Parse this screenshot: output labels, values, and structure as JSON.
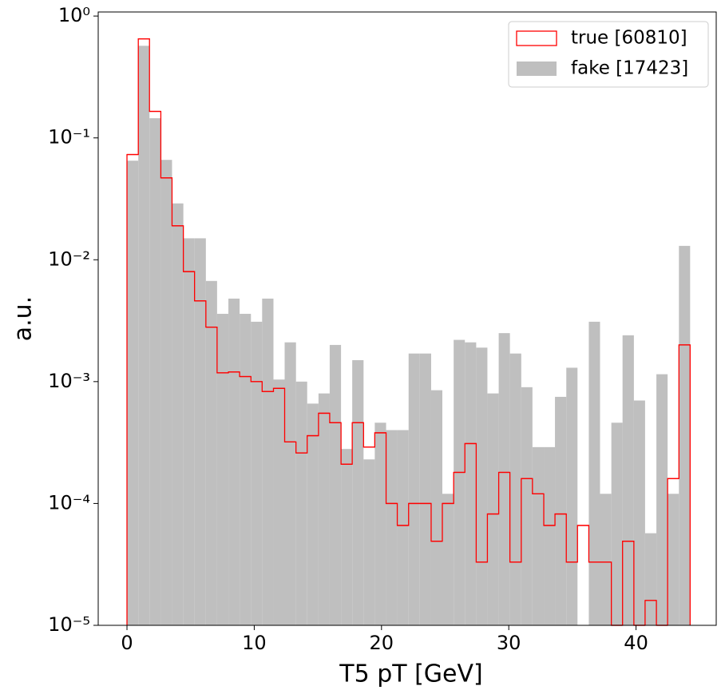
{
  "chart_data": {
    "type": "histogram",
    "x_label": "T5 pT [GeV]",
    "y_label": "a.u.",
    "log_y": true,
    "legend": "upper right",
    "bins": [
      0,
      0.89,
      1.77,
      2.66,
      3.54,
      4.43,
      5.31,
      6.2,
      7.08,
      7.97,
      8.85,
      9.74,
      10.62,
      11.51,
      12.39,
      13.28,
      14.16,
      15.05,
      15.93,
      16.82,
      17.7,
      18.59,
      19.47,
      20.36,
      21.24,
      22.13,
      23.01,
      23.9,
      24.78,
      25.67,
      26.55,
      27.44,
      28.32,
      29.21,
      30.09,
      30.98,
      31.86,
      32.75,
      33.63,
      34.52,
      35.4,
      36.29,
      37.17,
      38.06,
      38.94,
      39.83,
      40.71,
      41.6,
      42.48,
      43.37,
      44.25
    ],
    "series": [
      {
        "name": "fake [17423]",
        "color": "#bfbfbf",
        "histtype": "bar",
        "values": [
          0.065,
          0.57,
          0.145,
          0.066,
          0.029,
          0.015,
          0.015,
          0.0067,
          0.0036,
          0.0048,
          0.0036,
          0.0031,
          0.0048,
          0.00104,
          0.0021,
          0.001,
          0.00066,
          0.0008,
          0.002,
          0.00028,
          0.0015,
          0.00023,
          0.00046,
          0.0004,
          0.0004,
          0.0017,
          0.0017,
          0.00085,
          0.00012,
          0.0022,
          0.0021,
          0.0019,
          0.0008,
          0.0025,
          0.0017,
          0.0009,
          0.00029,
          0.00029,
          0.00075,
          0.0013,
          0,
          0.0031,
          0.00012,
          0.00046,
          0.0024,
          0.0007,
          5.7e-05,
          0.00115,
          0.00012,
          0.013
        ]
      },
      {
        "name": "true [60810]",
        "color": "#ff0000",
        "histtype": "step",
        "values": [
          0.073,
          0.65,
          0.165,
          0.047,
          0.019,
          0.008,
          0.0046,
          0.0028,
          0.00118,
          0.0012,
          0.0011,
          0.001,
          0.00083,
          0.00088,
          0.00032,
          0.00026,
          0.00036,
          0.00055,
          0.00046,
          0.00021,
          0.00046,
          0.00029,
          0.00038,
          0.0001,
          6.6e-05,
          0.0001,
          0.0001,
          4.9e-05,
          0.0001,
          0.00018,
          0.00031,
          3.3e-05,
          8.2e-05,
          0.00018,
          3.3e-05,
          0.00016,
          0.00012,
          6.6e-05,
          8.2e-05,
          3.3e-05,
          6.6e-05,
          3.3e-05,
          3.3e-05,
          0,
          4.9e-05,
          0,
          1.6e-05,
          0,
          0.00016,
          0.002
        ]
      }
    ],
    "xlim": [
      -2.26,
      46.3
    ],
    "ylim": [
      1e-05,
      1.08
    ],
    "xticks": [
      0,
      10,
      20,
      30,
      40
    ],
    "yticks": [
      {
        "value": 1e-05,
        "label": "10⁻⁵"
      },
      {
        "value": 0.0001,
        "label": "10⁻⁴"
      },
      {
        "value": 0.001,
        "label": "10⁻³"
      },
      {
        "value": 0.01,
        "label": "10⁻²"
      },
      {
        "value": 0.1,
        "label": "10⁻¹"
      },
      {
        "value": 1,
        "label": "10⁰"
      }
    ]
  }
}
